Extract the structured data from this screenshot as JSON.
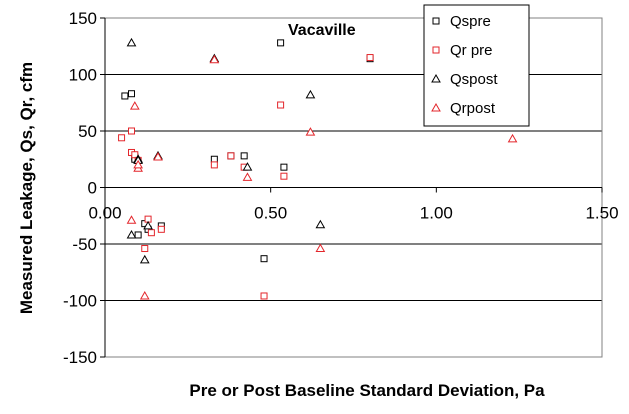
{
  "chart_data": {
    "type": "scatter",
    "annotation": "Vacaville",
    "xlabel": "Pre or Post Baseline Standard Deviation, Pa",
    "ylabel": "Measured Leakage, Qs, Qr, cfm",
    "xlim": [
      0,
      1.5
    ],
    "ylim": [
      -150,
      150
    ],
    "xticks": [
      "0.00",
      "0.50",
      "1.00",
      "1.50"
    ],
    "yticks": [
      "150",
      "100",
      "50",
      "0",
      "-50",
      "-100",
      "-150"
    ],
    "grid": "horizontal",
    "legend_position": "top-right",
    "series": [
      {
        "name": "Qspre",
        "marker": "square",
        "color": "#000000",
        "x": [
          0.06,
          0.08,
          0.09,
          0.09,
          0.1,
          0.12,
          0.13,
          0.17,
          0.33,
          0.38,
          0.42,
          0.48,
          0.53,
          0.54,
          0.8
        ],
        "y": [
          81,
          83,
          27,
          25,
          -42,
          -32,
          -37,
          -34,
          25,
          28,
          28,
          -63,
          128,
          18,
          114
        ]
      },
      {
        "name": "Qr pre",
        "marker": "square",
        "color": "#e3262b",
        "x": [
          0.05,
          0.08,
          0.08,
          0.09,
          0.1,
          0.12,
          0.13,
          0.14,
          0.17,
          0.33,
          0.38,
          0.42,
          0.48,
          0.53,
          0.54,
          0.8
        ],
        "y": [
          44,
          50,
          31,
          29,
          24,
          -54,
          -28,
          -40,
          -37,
          20,
          28,
          18,
          -96,
          73,
          10,
          115
        ]
      },
      {
        "name": "Qspost",
        "marker": "triangle",
        "color": "#000000",
        "x": [
          0.08,
          0.08,
          0.1,
          0.1,
          0.12,
          0.13,
          0.16,
          0.33,
          0.43,
          0.62,
          0.65
        ],
        "y": [
          128,
          -42,
          25,
          24,
          -64,
          -34,
          28,
          114,
          18,
          82,
          -33
        ]
      },
      {
        "name": "Qrpost",
        "marker": "triangle",
        "color": "#e3262b",
        "x": [
          0.08,
          0.09,
          0.1,
          0.1,
          0.12,
          0.16,
          0.33,
          0.43,
          0.62,
          0.65,
          1.23
        ],
        "y": [
          -29,
          72,
          17,
          20,
          -96,
          27,
          113,
          9,
          49,
          -54,
          43
        ]
      }
    ]
  }
}
